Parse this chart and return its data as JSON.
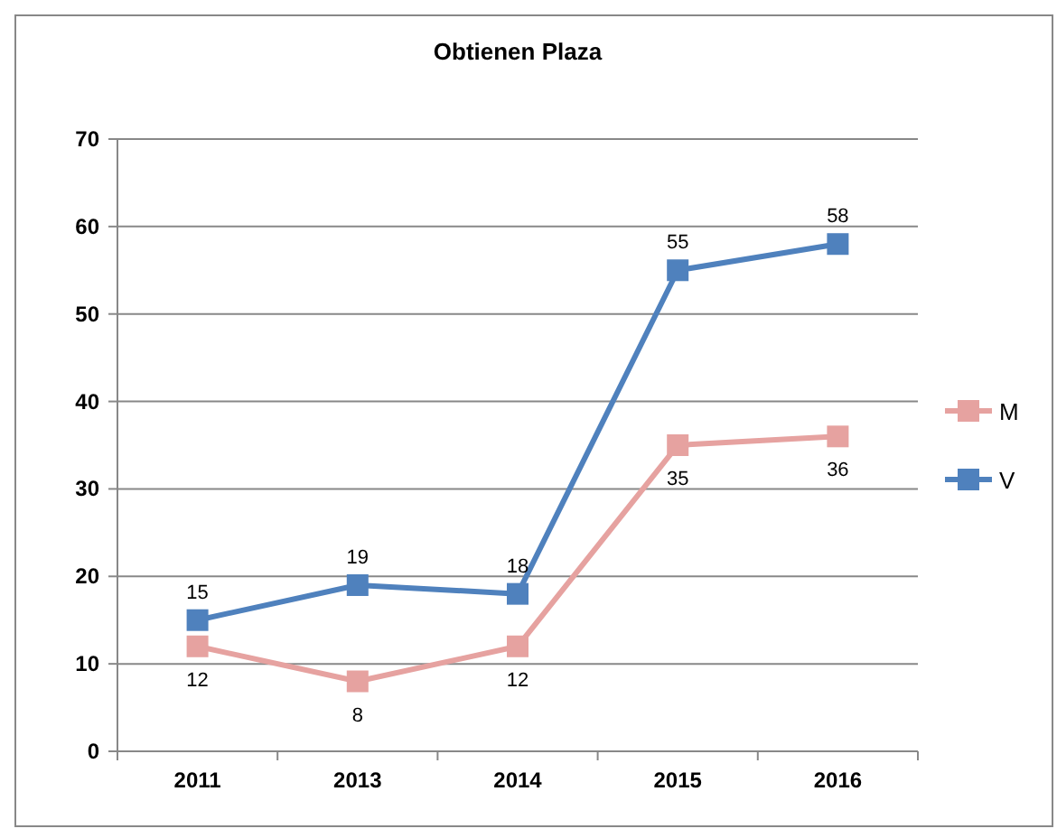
{
  "chart_data": {
    "type": "line",
    "title": "Obtienen Plaza",
    "categories": [
      "2011",
      "2013",
      "2014",
      "2015",
      "2016"
    ],
    "series": [
      {
        "name": "M",
        "color": "#e6a2a0",
        "values": [
          12,
          8,
          12,
          35,
          36
        ]
      },
      {
        "name": "V",
        "color": "#4f81bd",
        "values": [
          15,
          19,
          18,
          55,
          58
        ]
      }
    ],
    "ylim": [
      0,
      70
    ],
    "yticks": [
      0,
      10,
      20,
      30,
      40,
      50,
      60,
      70
    ],
    "grid": "y",
    "legend": "right",
    "marker": "square",
    "line_style": "solid",
    "data_labels": true
  }
}
